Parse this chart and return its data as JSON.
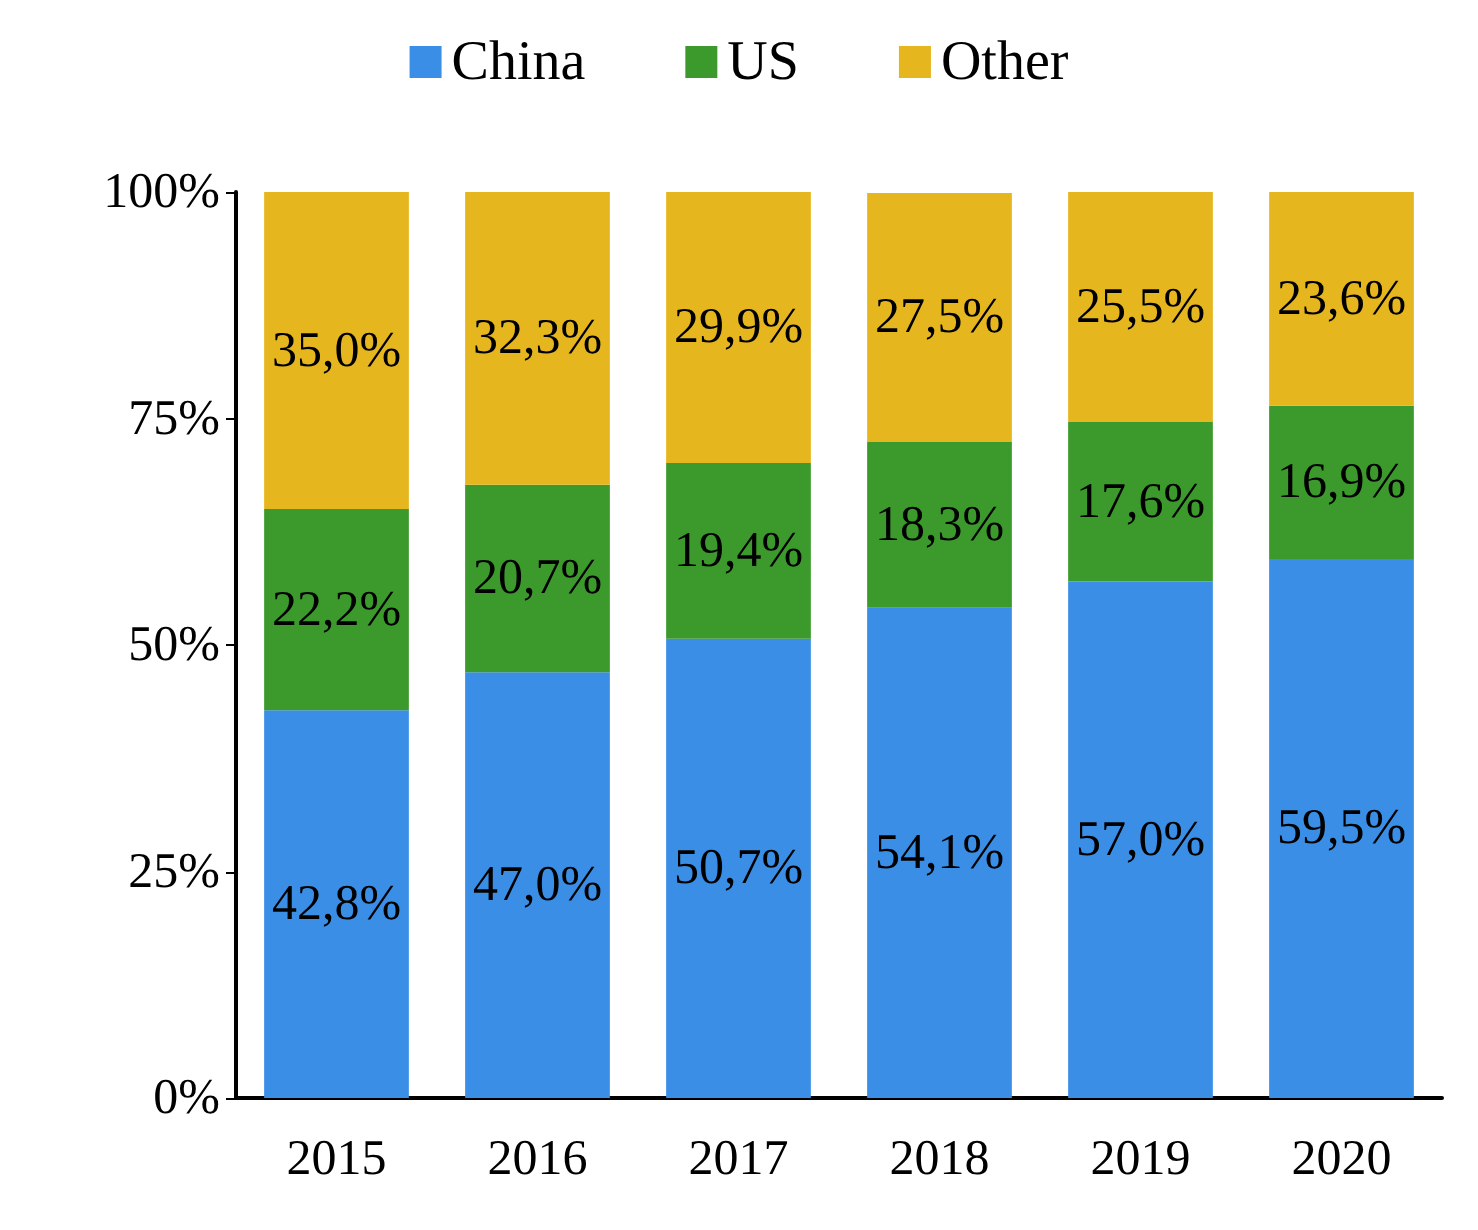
{
  "chart_data": {
    "type": "bar",
    "stacked": true,
    "categories": [
      "2015",
      "2016",
      "2017",
      "2018",
      "2019",
      "2020"
    ],
    "series": [
      {
        "name": "China",
        "color": "#3a8ee6",
        "values": [
          42.8,
          47.0,
          50.7,
          54.1,
          57.0,
          59.5
        ],
        "value_labels": [
          "42,8%",
          "47,0%",
          "50,7%",
          "54,1%",
          "57,0%",
          "59,5%"
        ]
      },
      {
        "name": "US",
        "color": "#3c9a2c",
        "values": [
          22.2,
          20.7,
          19.4,
          18.3,
          17.6,
          16.9
        ],
        "value_labels": [
          "22,2%",
          "20,7%",
          "19,4%",
          "18,3%",
          "17,6%",
          "16,9%"
        ]
      },
      {
        "name": "Other",
        "color": "#e6b61e",
        "values": [
          35.0,
          32.3,
          29.9,
          27.5,
          25.5,
          23.6
        ],
        "value_labels": [
          "35,0%",
          "32,3%",
          "29,9%",
          "27,5%",
          "25,5%",
          "23,6%"
        ]
      }
    ],
    "ylim": [
      0,
      100
    ],
    "yticks": [
      {
        "value": 0,
        "label": "0%"
      },
      {
        "value": 25,
        "label": "25%"
      },
      {
        "value": 50,
        "label": "50%"
      },
      {
        "value": 75,
        "label": "75%"
      },
      {
        "value": 100,
        "label": "100%"
      }
    ],
    "grid": false,
    "legend": "top"
  }
}
